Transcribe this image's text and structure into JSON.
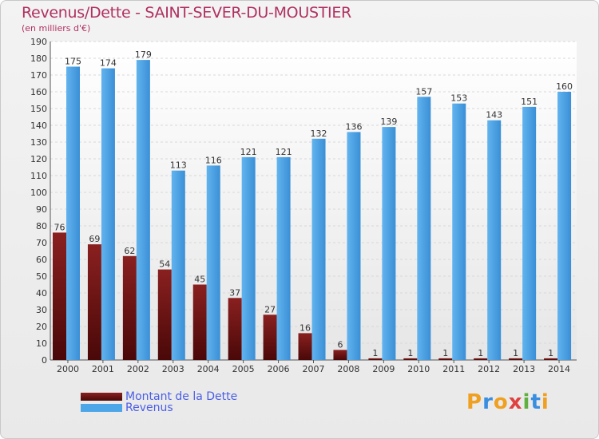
{
  "chart_data": {
    "type": "bar",
    "title": "Revenus/Dette - SAINT-SEVER-DU-MOUSTIER",
    "subtitle": "(en milliers d'€)",
    "categories": [
      "2000",
      "2001",
      "2002",
      "2003",
      "2004",
      "2005",
      "2006",
      "2007",
      "2008",
      "2009",
      "2010",
      "2011",
      "2012",
      "2013",
      "2014"
    ],
    "series": [
      {
        "name": "Montant de la Dette",
        "color": "#7a1414",
        "values": [
          76,
          69,
          62,
          54,
          45,
          37,
          27,
          16,
          6,
          1,
          1,
          1,
          1,
          1,
          1
        ]
      },
      {
        "name": "Revenus",
        "color": "#4da6e8",
        "values": [
          175,
          174,
          179,
          113,
          116,
          121,
          121,
          132,
          136,
          139,
          157,
          153,
          143,
          151,
          160
        ]
      }
    ],
    "yticks": [
      "0",
      "10",
      "20",
      "30",
      "40",
      "50",
      "60",
      "70",
      "80",
      "90",
      "100",
      "110",
      "120",
      "130",
      "140",
      "150",
      "160",
      "170",
      "180",
      "190"
    ],
    "ylim": [
      0,
      190
    ],
    "grid": true,
    "legend_position": "bottom-left"
  },
  "logo": {
    "text": "Proxiti",
    "letters": [
      "P",
      "r",
      "o",
      "x",
      "i",
      "t",
      "i"
    ],
    "colors": [
      "#f0a020",
      "#3a8ee0",
      "#f0a020",
      "#e04040",
      "#60b040",
      "#3a8ee0",
      "#f0a020"
    ]
  }
}
